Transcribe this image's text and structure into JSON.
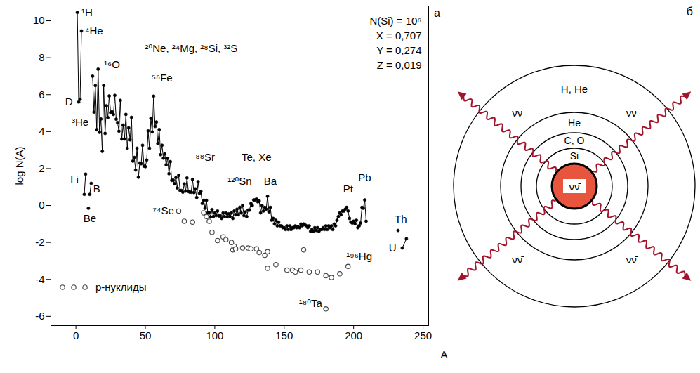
{
  "chart_data": {
    "type": "line",
    "panel_label": "а",
    "xlabel": "A",
    "ylabel": "log N(A)",
    "xlim": [
      -18,
      254
    ],
    "ylim": [
      -6.5,
      10.8
    ],
    "xticks": [
      0,
      50,
      100,
      150,
      200,
      250
    ],
    "yticks": [
      -6,
      -4,
      -2,
      0,
      2,
      4,
      6,
      8,
      10
    ],
    "legend": "bottom left",
    "info": [
      "N(Si) = 10⁶",
      "X = 0,707",
      "Y = 0,274",
      "Z = 0,019"
    ],
    "series": [
      {
        "x": [
          1,
          2,
          3,
          4
        ],
        "values": [
          10.45,
          5.6,
          5.75,
          9.45
        ],
        "color": "#000000",
        "marker": "filled circle",
        "line_style": "solid"
      },
      {
        "x": [
          6,
          7
        ],
        "values": [
          0.6,
          1.7
        ],
        "color": "#000000",
        "marker": "filled circle",
        "line_style": "solid"
      },
      {
        "x": [
          9
        ],
        "values": [
          -0.15
        ],
        "color": "#000000",
        "marker": "filled circle",
        "line_style": "solid"
      },
      {
        "x": [
          10,
          11
        ],
        "values": [
          0.6,
          1.2
        ],
        "color": "#000000",
        "marker": "filled circle",
        "line_style": "solid"
      },
      {
        "x": [
          12,
          13,
          14,
          15,
          16,
          17,
          18,
          19,
          20,
          21,
          22,
          23,
          24,
          25,
          26,
          27,
          28,
          29,
          30,
          31,
          32,
          33,
          34,
          35,
          36,
          37,
          38,
          39,
          40,
          41,
          42,
          43,
          44,
          45,
          46,
          47,
          48,
          49,
          50,
          51,
          52,
          53,
          54,
          55,
          56,
          57,
          58,
          59,
          60,
          61,
          62,
          63,
          64,
          65,
          66,
          67,
          68,
          69,
          70,
          71,
          72,
          73,
          74,
          75,
          76,
          77,
          78,
          79,
          80,
          81,
          82,
          83,
          84,
          85,
          86,
          87,
          88,
          89,
          90,
          91,
          92,
          93,
          94,
          95,
          96,
          97,
          98,
          99,
          100,
          101,
          102,
          103,
          104,
          105,
          106,
          107,
          108,
          109,
          110,
          111,
          112,
          113,
          114,
          115,
          116,
          117,
          118,
          119,
          120,
          121,
          122,
          123,
          124,
          125,
          126,
          127,
          128,
          129,
          130,
          131,
          132,
          133,
          134,
          135,
          136,
          137,
          138,
          139,
          140,
          141,
          142,
          143,
          144,
          145,
          146,
          147,
          148,
          149,
          150,
          151,
          152,
          153,
          154,
          155,
          156,
          157,
          158,
          159,
          160,
          161,
          162,
          163,
          164,
          165,
          166,
          167,
          168,
          169,
          170,
          171,
          172,
          173,
          174,
          175,
          176,
          177,
          178,
          179,
          180,
          181,
          182,
          183,
          184,
          185,
          186,
          187,
          188,
          189,
          190,
          191,
          192,
          193,
          194,
          195,
          196,
          197,
          198,
          199,
          200,
          201,
          202,
          203,
          204,
          205,
          206,
          207,
          208,
          209
        ],
        "values": [
          7.0,
          5.05,
          6.49,
          4.1,
          7.38,
          3.96,
          4.68,
          2.93,
          6.5,
          3.9,
          5.4,
          4.76,
          5.93,
          5.03,
          5.07,
          4.93,
          5.96,
          4.67,
          4.49,
          4.02,
          5.69,
          3.6,
          4.35,
          3.6,
          4.93,
          3.1,
          4.2,
          3.55,
          4.77,
          2.4,
          2.6,
          1.92,
          3.1,
          1.53,
          2.3,
          2.26,
          3.26,
          2.13,
          2.1,
          2.46,
          4.04,
          3.1,
          4.72,
          3.98,
          5.92,
          4.28,
          4.52,
          3.35,
          4.11,
          2.75,
          3.26,
          2.56,
          2.79,
          2.2,
          2.55,
          1.72,
          2.37,
          1.36,
          1.38,
          1.18,
          1.51,
          0.95,
          1.63,
          0.82,
          0.81,
          0.72,
          1.17,
          0.78,
          1.49,
          0.76,
          0.72,
          0.72,
          1.41,
          0.7,
          0.9,
          0.43,
          1.29,
          0.66,
          0.76,
          0.11,
          0.28,
          -0.15,
          0.28,
          -0.4,
          -0.38,
          -0.62,
          -0.22,
          -0.6,
          -0.4,
          -0.55,
          -0.3,
          -0.57,
          -0.55,
          -0.7,
          -0.4,
          -0.6,
          -0.4,
          -0.62,
          -0.45,
          -0.6,
          -0.4,
          -0.7,
          -0.3,
          -0.5,
          -0.2,
          -0.5,
          -0.1,
          -0.4,
          0,
          -0.55,
          -0.35,
          -0.6,
          -0.25,
          -0.25,
          0.1,
          0,
          0.3,
          0.3,
          0.35,
          0.2,
          0.25,
          -0.4,
          0,
          -0.3,
          -0.1,
          -0.2,
          0.5,
          -0.35,
          -0.1,
          -0.8,
          -0.7,
          -1.0,
          -0.8,
          -1.1,
          -0.9,
          -1.1,
          -1.1,
          -1.2,
          -1.2,
          -1.3,
          -1.1,
          -1.3,
          -1.1,
          -1.3,
          -1.2,
          -1.2,
          -1.1,
          -1.2,
          -1.15,
          -1.2,
          -1.0,
          -1.1,
          -1.0,
          -1.05,
          -1.1,
          -1.2,
          -1.1,
          -1.4,
          -1.3,
          -1.4,
          -1.2,
          -1.35,
          -1.2,
          -1.4,
          -1.3,
          -1.3,
          -1.2,
          -1.3,
          -1.1,
          -1.3,
          -1.1,
          -1.2,
          -1.1,
          -1.3,
          -1.0,
          -1.1,
          -0.8,
          -0.6,
          -0.4,
          -0.5,
          -0.3,
          -0.3,
          -0.2,
          -0.1,
          -0.3,
          -0.7,
          -0.9,
          -0.95,
          -0.85,
          -1.0,
          -0.8,
          -1.2,
          -1.1,
          -0.95,
          -0.1,
          -0.15,
          0.3,
          -0.85
        ],
        "color": "#000000",
        "marker": "filled circle",
        "line_style": "solid"
      },
      {
        "x": [
          232
        ],
        "values": [
          -1.35
        ],
        "color": "#000000",
        "marker": "filled circle",
        "line_style": "solid"
      },
      {
        "x": [
          235,
          238
        ],
        "values": [
          -2.3,
          -1.8
        ],
        "color": "#000000",
        "marker": "filled circle",
        "line_style": "solid"
      },
      {
        "name": "p-нуклиды",
        "x": [
          74,
          78,
          84,
          92,
          94,
          96,
          98,
          102,
          106,
          108,
          112,
          113,
          114,
          115,
          120,
          124,
          126,
          130,
          132,
          136,
          138,
          138,
          144,
          152,
          156,
          158,
          162,
          164,
          168,
          174,
          180,
          180,
          184,
          190,
          196
        ],
        "values": [
          -0.3,
          -0.85,
          -0.9,
          -0.4,
          -0.6,
          -0.85,
          -1.45,
          -1.9,
          -1.7,
          -1.85,
          -2.0,
          -2.4,
          -2.2,
          -2.35,
          -2.3,
          -2.3,
          -2.35,
          -2.35,
          -2.55,
          -2.7,
          -2.5,
          -3.4,
          -3.2,
          -3.5,
          -3.5,
          -3.6,
          -3.5,
          -2.4,
          -3.6,
          -3.6,
          -3.8,
          -5.6,
          -3.9,
          -3.7,
          -3.3
        ],
        "color": "#444444",
        "marker": "open circle",
        "line_style": "none"
      }
    ],
    "annotations": [
      {
        "text": "¹H",
        "x": 8,
        "y": 10.45
      },
      {
        "text": "⁴He",
        "x": 13,
        "y": 9.45
      },
      {
        "text": "¹⁶O",
        "x": 26,
        "y": 7.6
      },
      {
        "text": "D",
        "x": -5,
        "y": 5.6
      },
      {
        "text": "³He",
        "x": 3,
        "y": 4.5
      },
      {
        "text": "²⁰Ne, ²⁴Mg, ²⁸Si, ³²S",
        "x": 83,
        "y": 8.5
      },
      {
        "text": "⁵⁶Fe",
        "x": 62,
        "y": 6.9
      },
      {
        "text": "⁸⁸Sr",
        "x": 93,
        "y": 2.6
      },
      {
        "text": "¹²⁰Sn",
        "x": 118,
        "y": 1.3
      },
      {
        "text": "Te, Xe",
        "x": 130,
        "y": 2.6
      },
      {
        "text": "Ba",
        "x": 140,
        "y": 1.3
      },
      {
        "text": "Pt",
        "x": 196,
        "y": 0.9
      },
      {
        "text": "Pb",
        "x": 208,
        "y": 1.5
      },
      {
        "text": "Th",
        "x": 234,
        "y": -0.75
      },
      {
        "text": "U",
        "x": 228,
        "y": -2.3
      },
      {
        "text": "Li",
        "x": -1,
        "y": 1.4
      },
      {
        "text": "B",
        "x": 15,
        "y": 0.9
      },
      {
        "text": "Be",
        "x": 10,
        "y": -0.7
      },
      {
        "text": "⁷⁴Se",
        "x": 63,
        "y": -0.3
      },
      {
        "text": "¹⁹⁶Hg",
        "x": 204,
        "y": -2.75
      },
      {
        "text": "¹⁸⁰Ta",
        "x": 169,
        "y": -5.3
      }
    ]
  },
  "diagram": {
    "panel_label": "б",
    "shells": [
      "H, He",
      "He",
      "C, O",
      "Si"
    ],
    "core_label": "νν̄",
    "flux_labels": [
      "νν̄",
      "νν̄",
      "νν̄",
      "νν̄"
    ]
  }
}
